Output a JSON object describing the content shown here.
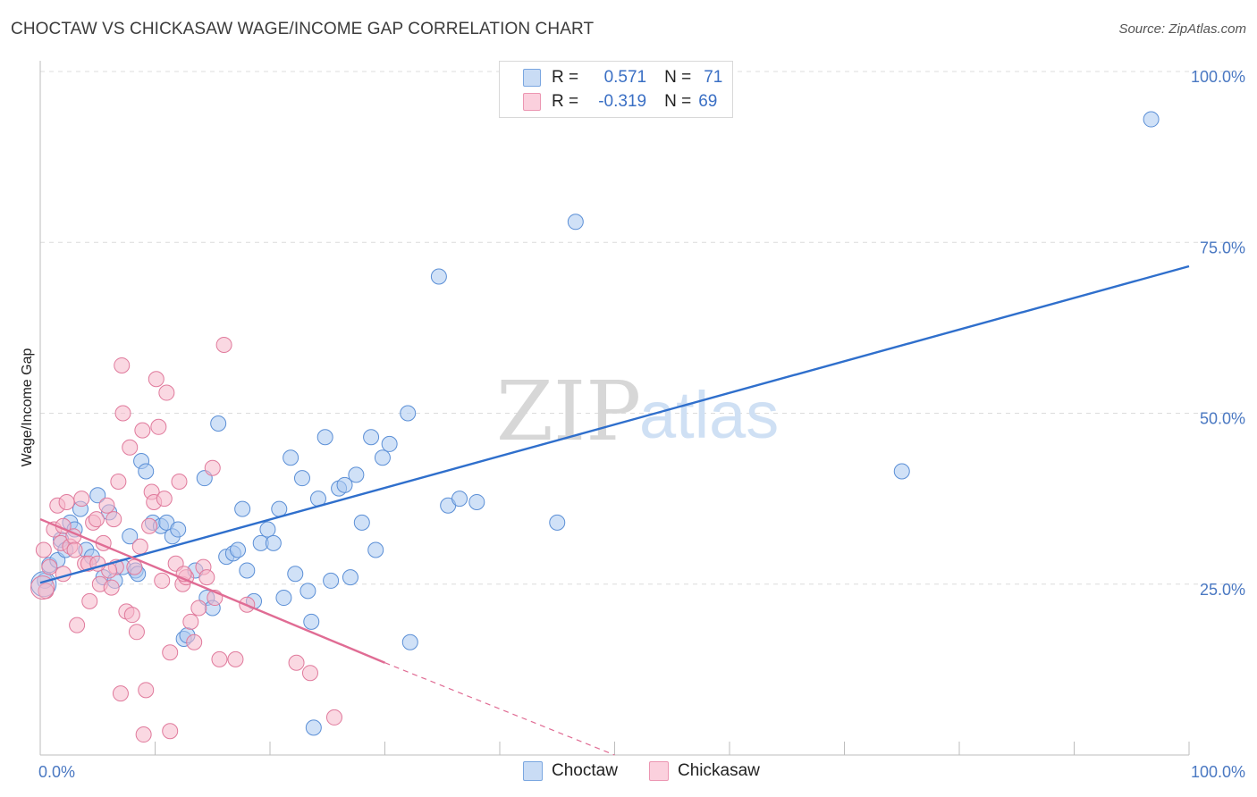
{
  "title": "CHOCTAW VS CHICKASAW WAGE/INCOME GAP CORRELATION CHART",
  "source": "Source: ZipAtlas.com",
  "watermark": {
    "zip": "ZIP",
    "atlas": "atlas"
  },
  "legend": {
    "rows": [
      {
        "r_label": "R =",
        "r_value": "0.571",
        "n_label": "N =",
        "n_value": "71",
        "color": "#a9c8f0"
      },
      {
        "r_label": "R =",
        "r_value": "-0.319",
        "n_label": "N =",
        "n_value": "69",
        "color": "#f6b8cb"
      }
    ]
  },
  "chart_data": {
    "type": "scatter",
    "title": "CHOCTAW VS CHICKASAW WAGE/INCOME GAP CORRELATION CHART",
    "xlabel": "",
    "ylabel": "Wage/Income Gap",
    "xlim": [
      0,
      100
    ],
    "ylim": [
      0,
      100
    ],
    "x_tick_labels": [
      "0.0%",
      "100.0%"
    ],
    "y_tick_labels": [
      "25.0%",
      "50.0%",
      "75.0%",
      "100.0%"
    ],
    "y_ticks": [
      25,
      50,
      75,
      100
    ],
    "grid": true,
    "legend_position": "top-center",
    "series": [
      {
        "name": "Choctaw",
        "color": "#a9c8f0",
        "stroke": "#5b8fd6",
        "trend": {
          "x": [
            0,
            100
          ],
          "y": [
            25.2,
            71.5
          ],
          "color": "#2f6fcc"
        },
        "points": [
          [
            0.4,
            25.5
          ],
          [
            0.8,
            27.8
          ],
          [
            1.5,
            28.5
          ],
          [
            1.8,
            31.5
          ],
          [
            2.2,
            30.0
          ],
          [
            2.6,
            34.0
          ],
          [
            3.0,
            33.0
          ],
          [
            3.5,
            36.0
          ],
          [
            4.0,
            30.0
          ],
          [
            4.5,
            29.0
          ],
          [
            5.0,
            38.0
          ],
          [
            5.5,
            26.0
          ],
          [
            6.0,
            35.5
          ],
          [
            6.5,
            25.5
          ],
          [
            7.2,
            27.5
          ],
          [
            7.8,
            32.0
          ],
          [
            8.3,
            27.0
          ],
          [
            8.8,
            43.0
          ],
          [
            9.2,
            41.5
          ],
          [
            9.8,
            34.0
          ],
          [
            10.5,
            33.5
          ],
          [
            11.0,
            34.0
          ],
          [
            11.5,
            32.0
          ],
          [
            12.0,
            33.0
          ],
          [
            12.5,
            17.0
          ],
          [
            12.8,
            17.5
          ],
          [
            13.5,
            27.0
          ],
          [
            14.3,
            40.5
          ],
          [
            14.5,
            23.0
          ],
          [
            15.0,
            21.5
          ],
          [
            15.5,
            48.5
          ],
          [
            16.2,
            29.0
          ],
          [
            16.8,
            29.5
          ],
          [
            17.2,
            30.0
          ],
          [
            17.6,
            36.0
          ],
          [
            18.0,
            27.0
          ],
          [
            18.6,
            22.5
          ],
          [
            19.2,
            31.0
          ],
          [
            19.8,
            33.0
          ],
          [
            20.3,
            31.0
          ],
          [
            20.8,
            36.0
          ],
          [
            21.2,
            23.0
          ],
          [
            21.8,
            43.5
          ],
          [
            22.2,
            26.5
          ],
          [
            22.8,
            40.5
          ],
          [
            23.3,
            24.0
          ],
          [
            23.6,
            19.5
          ],
          [
            24.2,
            37.5
          ],
          [
            24.8,
            46.5
          ],
          [
            25.3,
            25.5
          ],
          [
            26.0,
            39.0
          ],
          [
            26.5,
            39.5
          ],
          [
            27.0,
            26.0
          ],
          [
            27.5,
            41.0
          ],
          [
            28.0,
            34.0
          ],
          [
            28.8,
            46.5
          ],
          [
            29.2,
            30.0
          ],
          [
            29.8,
            43.5
          ],
          [
            30.4,
            45.5
          ],
          [
            32.0,
            50.0
          ],
          [
            32.2,
            16.5
          ],
          [
            34.7,
            70.0
          ],
          [
            35.5,
            36.5
          ],
          [
            36.5,
            37.5
          ],
          [
            38.0,
            37.0
          ],
          [
            45.0,
            34.0
          ],
          [
            46.6,
            78.0
          ],
          [
            75.0,
            41.5
          ],
          [
            96.7,
            93.0
          ],
          [
            23.8,
            4.0
          ],
          [
            8.5,
            26.5
          ]
        ]
      },
      {
        "name": "Chickasaw",
        "color": "#f6b8cb",
        "stroke": "#e07a9c",
        "trend": {
          "x": [
            0,
            30.0
          ],
          "y": [
            34.5,
            13.5
          ],
          "color": "#e06c94",
          "dash_to": {
            "x": 50.0,
            "y": 0
          }
        },
        "points": [
          [
            0.3,
            30.0
          ],
          [
            0.5,
            24.0
          ],
          [
            0.8,
            27.5
          ],
          [
            1.2,
            33.0
          ],
          [
            1.5,
            36.5
          ],
          [
            1.8,
            31.0
          ],
          [
            2.0,
            26.5
          ],
          [
            2.3,
            37.0
          ],
          [
            2.6,
            30.5
          ],
          [
            2.9,
            32.0
          ],
          [
            3.2,
            19.0
          ],
          [
            3.6,
            37.5
          ],
          [
            3.9,
            28.0
          ],
          [
            4.2,
            28.0
          ],
          [
            4.3,
            22.5
          ],
          [
            4.6,
            34.0
          ],
          [
            4.9,
            34.5
          ],
          [
            5.2,
            25.0
          ],
          [
            5.5,
            31.0
          ],
          [
            5.8,
            36.5
          ],
          [
            6.2,
            24.5
          ],
          [
            6.4,
            34.5
          ],
          [
            6.6,
            27.5
          ],
          [
            6.8,
            40.0
          ],
          [
            7.1,
            57.0
          ],
          [
            7.2,
            50.0
          ],
          [
            7.5,
            21.0
          ],
          [
            7.8,
            45.0
          ],
          [
            8.0,
            20.5
          ],
          [
            8.2,
            27.5
          ],
          [
            8.4,
            18.0
          ],
          [
            8.7,
            30.5
          ],
          [
            8.9,
            47.5
          ],
          [
            9.2,
            9.5
          ],
          [
            9.5,
            33.5
          ],
          [
            9.7,
            38.5
          ],
          [
            9.9,
            37.0
          ],
          [
            10.1,
            55.0
          ],
          [
            10.3,
            48.0
          ],
          [
            10.6,
            25.5
          ],
          [
            11.0,
            53.0
          ],
          [
            11.3,
            15.0
          ],
          [
            11.8,
            28.0
          ],
          [
            12.1,
            40.0
          ],
          [
            12.4,
            25.0
          ],
          [
            12.7,
            26.0
          ],
          [
            13.1,
            19.5
          ],
          [
            13.4,
            16.5
          ],
          [
            13.8,
            21.5
          ],
          [
            14.2,
            27.5
          ],
          [
            14.5,
            26.0
          ],
          [
            15.0,
            42.0
          ],
          [
            15.2,
            23.0
          ],
          [
            15.6,
            14.0
          ],
          [
            16.0,
            60.0
          ],
          [
            17.0,
            14.0
          ],
          [
            18.0,
            22.0
          ],
          [
            22.3,
            13.5
          ],
          [
            23.5,
            12.0
          ],
          [
            25.6,
            5.5
          ],
          [
            9.0,
            3.0
          ],
          [
            11.3,
            3.5
          ],
          [
            7.0,
            9.0
          ],
          [
            6.0,
            27.0
          ],
          [
            5.0,
            28.0
          ],
          [
            3.0,
            30.0
          ],
          [
            12.5,
            26.5
          ],
          [
            10.8,
            37.5
          ],
          [
            2.0,
            33.5
          ]
        ]
      }
    ]
  }
}
